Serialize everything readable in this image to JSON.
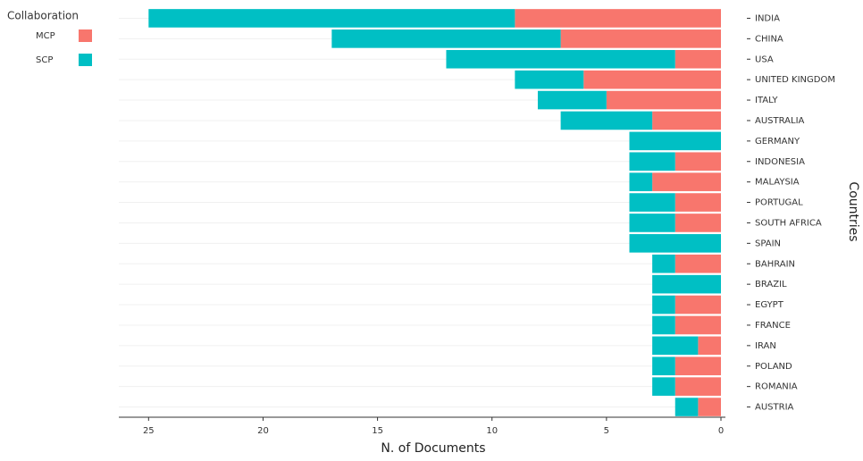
{
  "chart_data": {
    "type": "bar",
    "orientation": "horizontal",
    "stacked": true,
    "reversed_x": true,
    "x_label": "N. of Documents",
    "y_label": "Countries",
    "legend_title": "Collaboration",
    "legend_position": "top-left",
    "categories": [
      "INDIA",
      "CHINA",
      "USA",
      "UNITED KINGDOM",
      "ITALY",
      "AUSTRALIA",
      "GERMANY",
      "INDONESIA",
      "MALAYSIA",
      "PORTUGAL",
      "SOUTH AFRICA",
      "SPAIN",
      "BAHRAIN",
      "BRAZIL",
      "EGYPT",
      "FRANCE",
      "IRAN",
      "POLAND",
      "ROMANIA",
      "AUSTRIA"
    ],
    "series": [
      {
        "name": "MCP",
        "color": "#f8766d",
        "values": [
          9,
          7,
          2,
          6,
          5,
          3,
          0,
          2,
          3,
          2,
          2,
          0,
          2,
          0,
          2,
          2,
          1,
          2,
          2,
          1
        ]
      },
      {
        "name": "SCP",
        "color": "#00bfc4",
        "values": [
          16,
          10,
          10,
          3,
          3,
          4,
          4,
          2,
          1,
          2,
          2,
          4,
          1,
          3,
          1,
          1,
          2,
          1,
          1,
          1
        ]
      }
    ],
    "xlim": [
      0,
      26.3
    ],
    "xticks": [
      0,
      5,
      10,
      15,
      20,
      25
    ]
  }
}
